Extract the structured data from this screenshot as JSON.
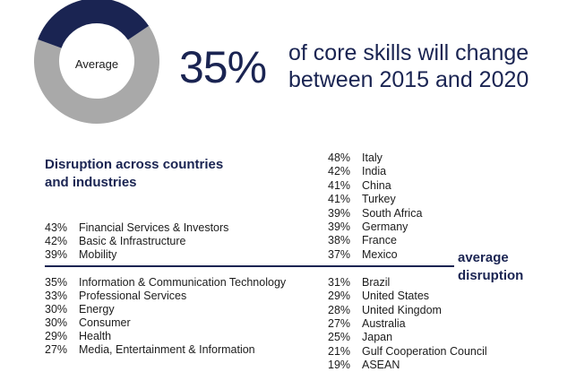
{
  "headline": {
    "percent": "35%",
    "line1": "of core skills will change",
    "line2": "between 2015 and 2020"
  },
  "donut": {
    "center_label": "Average",
    "value": 35,
    "highlight_color": "#1a2452",
    "rest_color": "#a9a9a9"
  },
  "subtitle": {
    "line1": "Disruption across countries",
    "line2": "and industries"
  },
  "average_label": {
    "line1": "average",
    "line2": "disruption"
  },
  "chart_data": {
    "type": "table",
    "title": "Disruption across countries and industries",
    "industries": [
      {
        "pct": "43%",
        "name": "Financial Services & Investors"
      },
      {
        "pct": "42%",
        "name": "Basic & Infrastructure"
      },
      {
        "pct": "39%",
        "name": "Mobility"
      },
      {
        "pct": "35%",
        "name": "Information & Communication Technology"
      },
      {
        "pct": "33%",
        "name": "Professional Services"
      },
      {
        "pct": "30%",
        "name": "Energy"
      },
      {
        "pct": "30%",
        "name": "Consumer"
      },
      {
        "pct": "29%",
        "name": "Health"
      },
      {
        "pct": "27%",
        "name": "Media, Entertainment & Information"
      }
    ],
    "countries": [
      {
        "pct": "48%",
        "name": "Italy"
      },
      {
        "pct": "42%",
        "name": "India"
      },
      {
        "pct": "41%",
        "name": "China"
      },
      {
        "pct": "41%",
        "name": "Turkey"
      },
      {
        "pct": "39%",
        "name": "South Africa"
      },
      {
        "pct": "39%",
        "name": "Germany"
      },
      {
        "pct": "38%",
        "name": "France"
      },
      {
        "pct": "37%",
        "name": "Mexico"
      },
      {
        "pct": "31%",
        "name": "Brazil"
      },
      {
        "pct": "29%",
        "name": "United States"
      },
      {
        "pct": "28%",
        "name": "United Kingdom"
      },
      {
        "pct": "27%",
        "name": "Australia"
      },
      {
        "pct": "25%",
        "name": "Japan"
      },
      {
        "pct": "21%",
        "name": "Gulf Cooperation Council"
      },
      {
        "pct": "19%",
        "name": "ASEAN"
      }
    ]
  }
}
